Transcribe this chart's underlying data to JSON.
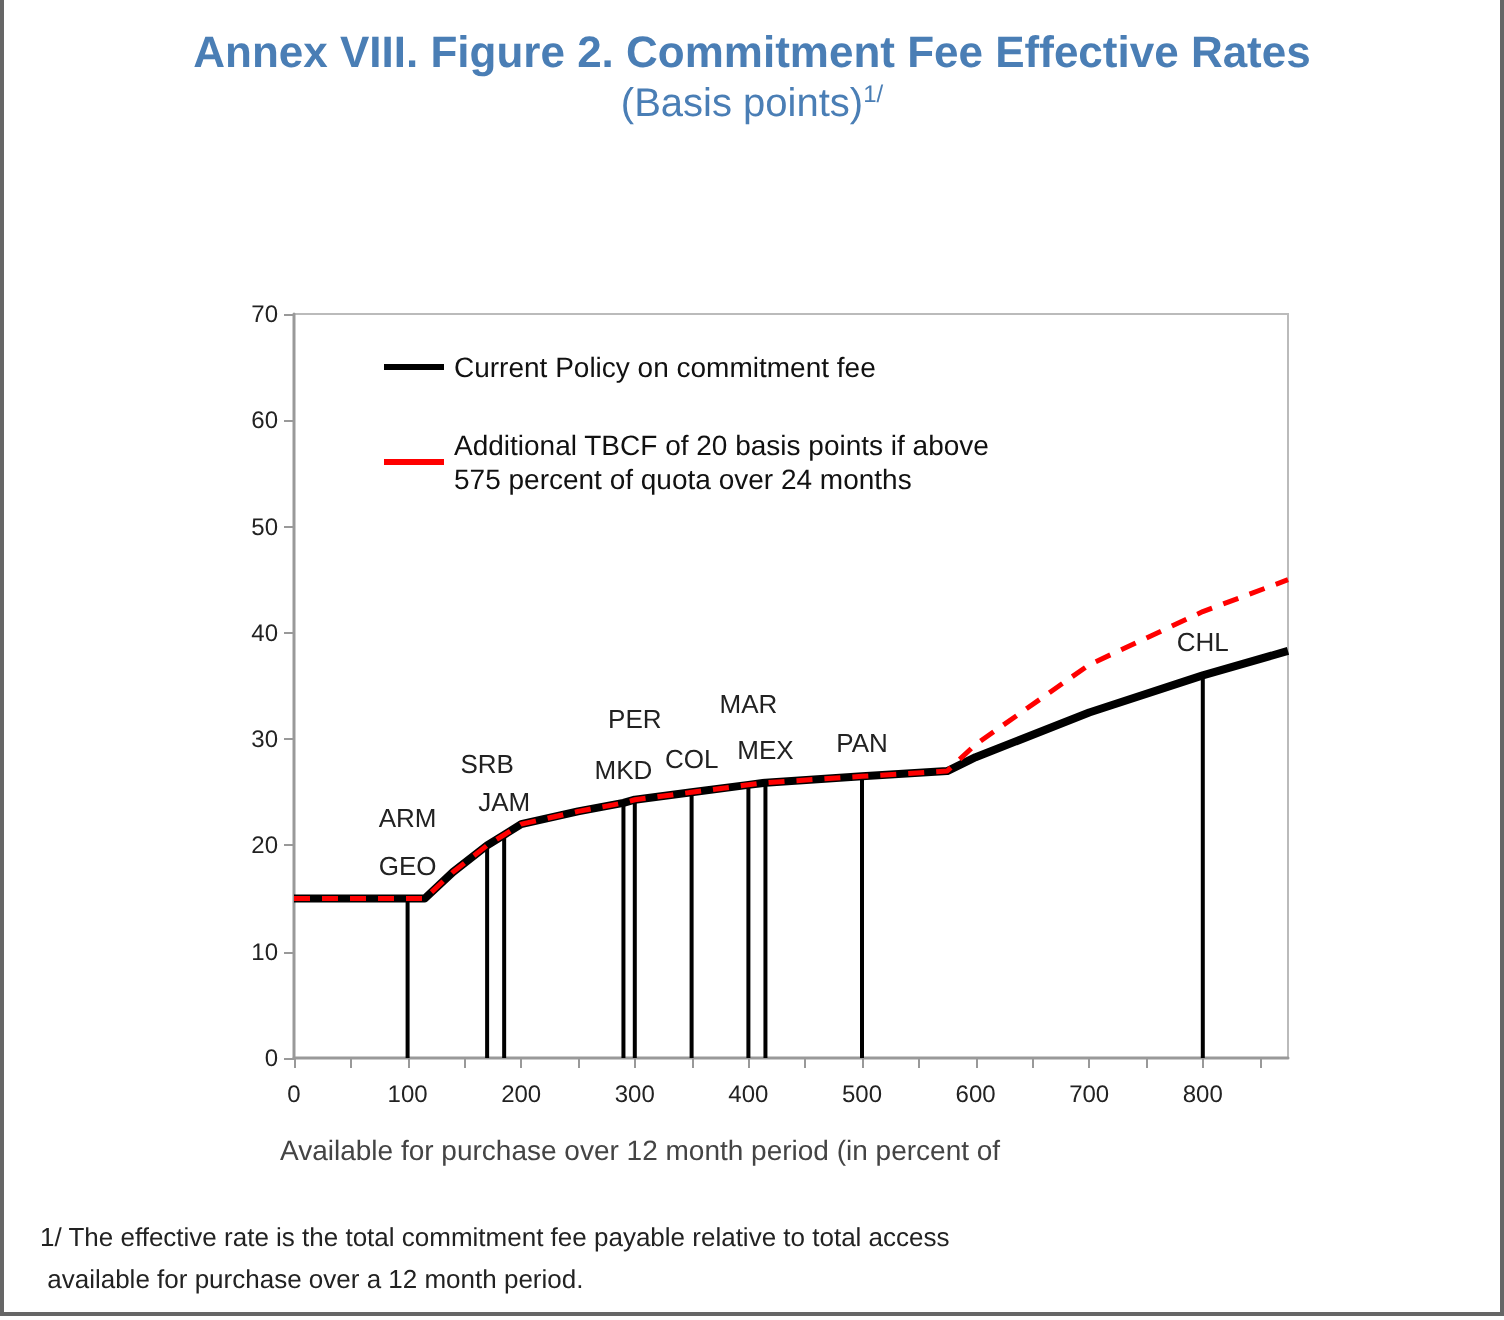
{
  "chart_data": {
    "type": "line",
    "title": "Annex VIII. Figure 2. Commitment Fee Effective Rates",
    "subtitle": "(Basis points)$^{1/}$",
    "xlabel": "Available for purchase over 12 month period (in percent of",
    "series": [
      {
        "name": "Current Policy on commitment fee",
        "color": "#000000",
        "line_style": "solid",
        "x": [
          0,
          115,
          140,
          170,
          185,
          200,
          250,
          290,
          300,
          350,
          400,
          415,
          500,
          575,
          600,
          700,
          800,
          875
        ],
        "values": [
          15,
          15,
          17.5,
          20,
          21,
          22,
          23.2,
          24,
          24.3,
          25,
          25.7,
          25.9,
          26.5,
          27,
          28.3,
          32.5,
          36,
          38.3
        ]
      },
      {
        "name": "Additional TBCF of 20 basis points if above 575 percent of quota over 24 months",
        "color": "#ff0000",
        "line_style": "dashed",
        "x": [
          0,
          115,
          140,
          170,
          185,
          200,
          250,
          290,
          300,
          350,
          400,
          415,
          500,
          575,
          600,
          700,
          800,
          875
        ],
        "values": [
          15,
          15,
          17.5,
          20,
          21,
          22,
          23.2,
          24,
          24.3,
          25,
          25.7,
          25.9,
          26.5,
          27,
          29.5,
          37,
          42,
          45
        ]
      },
      {
        "type": "bar",
        "color": "#000000",
        "x": [
          100,
          170,
          185,
          290,
          300,
          350,
          400,
          415,
          500,
          800
        ],
        "values": [
          15,
          20,
          21,
          24,
          24.3,
          25,
          25.7,
          25.9,
          26.5,
          36
        ]
      }
    ],
    "annotations": [
      {
        "text": "ARM",
        "x": 100,
        "y": 15
      },
      {
        "text": "GEO",
        "x": 100,
        "y": 15
      },
      {
        "text": "SRB",
        "x": 170,
        "y": 20
      },
      {
        "text": "JAM",
        "x": 185,
        "y": 21
      },
      {
        "text": "PER",
        "x": 300,
        "y": 24.3
      },
      {
        "text": "MKD",
        "x": 290,
        "y": 24
      },
      {
        "text": "COL",
        "x": 350,
        "y": 25
      },
      {
        "text": "MAR",
        "x": 400,
        "y": 25.7
      },
      {
        "text": "MEX",
        "x": 415,
        "y": 25.9
      },
      {
        "text": "PAN",
        "x": 500,
        "y": 26.5
      },
      {
        "text": "CHL",
        "x": 800,
        "y": 36
      },
      "1/ The effective rate is the total commitment fee payable relative to total access available for purchase over a 12 month period."
    ],
    "xlim": [
      0,
      875
    ],
    "xticks": [
      0,
      {
        "value": 50,
        "label": null
      },
      100,
      {
        "value": 150,
        "label": null
      },
      200,
      {
        "value": 250,
        "label": null
      },
      300,
      {
        "value": 350,
        "label": null
      },
      400,
      {
        "value": 450,
        "label": null
      },
      500,
      {
        "value": 550,
        "label": null
      },
      600,
      {
        "value": 650,
        "label": null
      },
      700,
      {
        "value": 750,
        "label": null
      },
      800,
      {
        "value": 850,
        "label": null
      }
    ],
    "ylim": [
      0,
      70
    ],
    "yticks": [
      0,
      10,
      20,
      30,
      40,
      50,
      60,
      70
    ],
    "grid": false,
    "legend": "top left",
    "marker": "none"
  }
}
